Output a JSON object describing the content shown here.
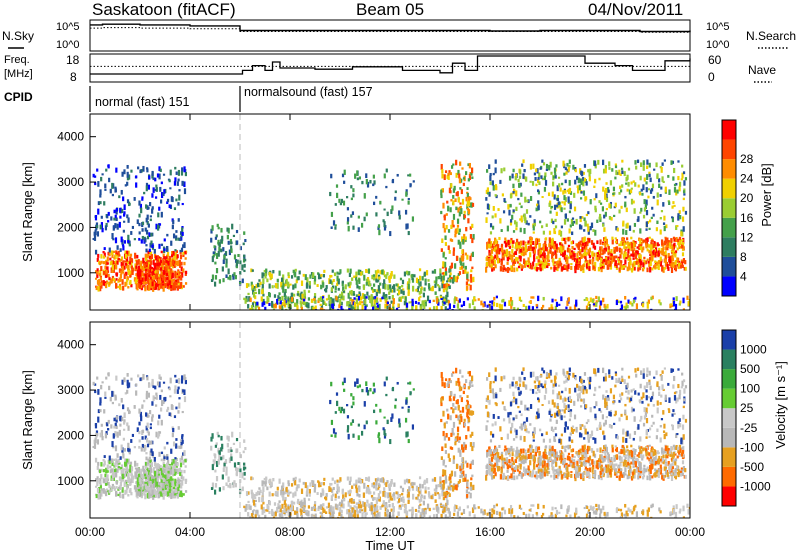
{
  "header": {
    "station": "Saskatoon (fitACF)",
    "beam": "Beam 05",
    "date": "04/Nov/2011"
  },
  "noise_panel": {
    "left_label": "N.Sky",
    "right_label": "N.Search",
    "y_ticks": [
      "10^5",
      "10^0"
    ]
  },
  "freq_panel": {
    "left_label_1": "Freq.",
    "left_label_2": "[MHz]",
    "left_ticks": [
      "18",
      "8"
    ],
    "right_label": "Nave",
    "right_ticks": [
      "60",
      "0"
    ]
  },
  "cpid": {
    "label": "CPID",
    "modes": [
      {
        "text": "normal (fast) 151",
        "start_hour": 0,
        "end_hour": 6
      },
      {
        "text": "normalsound (fast) 157",
        "start_hour": 6,
        "end_hour": 24
      }
    ]
  },
  "x_axis": {
    "label": "Time UT",
    "ticks": [
      "00:00",
      "04:00",
      "08:00",
      "12:00",
      "16:00",
      "20:00",
      "00:00"
    ]
  },
  "colors": {
    "power_scale": [
      "#0000ff",
      "#1f4e9a",
      "#2e7d60",
      "#44a04a",
      "#9acd32",
      "#f0d000",
      "#ff8c00",
      "#ff4500",
      "#ff0000"
    ],
    "velocity_scale": [
      "#1a3fa8",
      "#2a8060",
      "#3aaa3a",
      "#66cc33",
      "#c8c8c8",
      "#b8b8b8",
      "#e6a020",
      "#ff6a00",
      "#ff0000"
    ]
  },
  "chart_data": [
    {
      "type": "line",
      "name": "noise",
      "ylim": [
        0,
        100000
      ],
      "yscale": "log",
      "x_hours": [
        0,
        0.5,
        2,
        4,
        6,
        8,
        10,
        12,
        14,
        16,
        18,
        20,
        22,
        24
      ],
      "series": [
        {
          "name": "N.Sky",
          "values": [
            30000,
            40000,
            30000,
            20000,
            3000,
            3000,
            3000,
            3000,
            3000,
            2500,
            3000,
            3000,
            2000,
            3000
          ]
        },
        {
          "name": "N.Search",
          "values": [
            8000,
            10000,
            8000,
            6000,
            2000,
            2000,
            2000,
            2000,
            2000,
            2000,
            2000,
            2000,
            1500,
            2000
          ]
        }
      ]
    },
    {
      "type": "line",
      "name": "frequency",
      "ylim": [
        8,
        18
      ],
      "x_hours": [
        0,
        6.1,
        6.5,
        7,
        7.3,
        7.6,
        9,
        10.5,
        12.5,
        14,
        14.5,
        15,
        15.5,
        17.5,
        19.8,
        21,
        21.7,
        23,
        24
      ],
      "series": [
        {
          "name": "Freq",
          "values": [
            10.5,
            12,
            14,
            12,
            15.5,
            13,
            12.5,
            13.5,
            12,
            11,
            15,
            12,
            18,
            18,
            15,
            14,
            12,
            16,
            17
          ]
        },
        {
          "name": "Nave",
          "values": [
            34,
            34,
            34,
            34,
            34,
            34,
            34,
            34,
            34,
            34,
            34,
            34,
            34,
            34,
            34,
            34,
            34,
            34,
            34
          ]
        }
      ]
    },
    {
      "type": "heatmap",
      "name": "power",
      "title": "",
      "xlabel": "",
      "ylabel": "Slant Range [km]",
      "xlim_hours": [
        0,
        24
      ],
      "ylim": [
        180,
        4500
      ],
      "y_ticks": [
        1000,
        2000,
        3000,
        4000
      ],
      "colorbar_label": "Power [dB]",
      "colorbar_ticks": [
        4,
        8,
        12,
        16,
        20,
        24,
        28
      ]
    },
    {
      "type": "heatmap",
      "name": "velocity",
      "title": "",
      "xlabel": "Time UT",
      "ylabel": "Slant Range [km]",
      "xlim_hours": [
        0,
        24
      ],
      "ylim": [
        180,
        4500
      ],
      "y_ticks": [
        1000,
        2000,
        3000,
        4000
      ],
      "colorbar_label": "Velocity [m s⁻¹]",
      "colorbar_ticks": [
        1000,
        500,
        100,
        25,
        -25,
        -100,
        -500,
        -1000
      ]
    }
  ]
}
